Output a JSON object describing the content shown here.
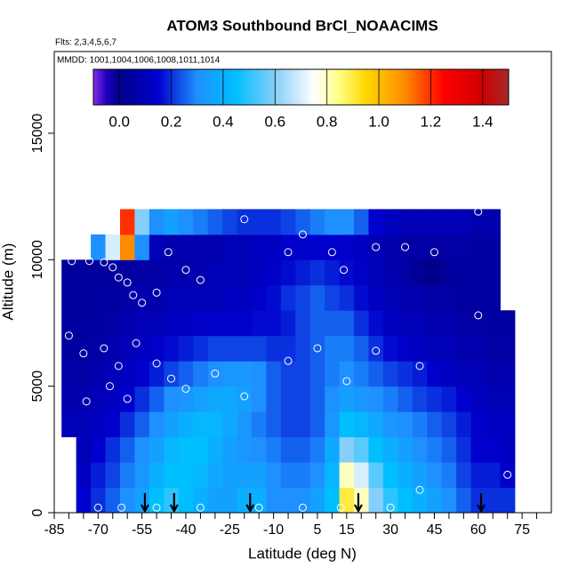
{
  "chart_data": {
    "type": "heatmap",
    "title": "ATOM3 Southbound BrCl_NOAACIMS",
    "subtitle": "Flts: 2,3,4,5,6,7",
    "annotation": "MMDD: 1001,1004,1006,1008,1011,1014",
    "x_label": "Latitude (deg N)",
    "y_label": "Altitude (m)",
    "xlim": [
      -85,
      85
    ],
    "ylim": [
      0,
      18230
    ],
    "xticks": [
      -85,
      -70,
      -55,
      -40,
      -25,
      -10,
      5,
      15,
      30,
      45,
      60,
      75
    ],
    "xminor": [
      -80,
      -75,
      -65,
      -60,
      -50,
      -45,
      -35,
      -30,
      -20,
      -15,
      -5,
      0,
      10,
      20,
      25,
      35,
      40,
      50,
      55,
      65,
      70,
      80
    ],
    "yticks": [
      0,
      5000,
      10000,
      15000
    ],
    "lat_bins": [
      -82.5,
      -77.5,
      -72.5,
      -67.5,
      -62.5,
      -57.5,
      -52.5,
      -47.5,
      -42.5,
      -37.5,
      -32.5,
      -27.5,
      -22.5,
      -17.5,
      -12.5,
      -7.5,
      -2.5,
      2.5,
      7.5,
      12.5,
      17.5,
      22.5,
      27.5,
      32.5,
      37.5,
      42.5,
      47.5,
      52.5,
      57.5,
      62.5,
      67.5,
      72.5
    ],
    "altitude_bins": [
      0,
      1000,
      2000,
      3000,
      4000,
      5000,
      6000,
      7000,
      8000,
      9000,
      10000,
      11000,
      12000
    ],
    "z": [
      [
        null,
        0.15,
        0.2,
        0.25,
        0.3,
        0.35,
        0.45,
        0.5,
        0.45,
        0.4,
        0.35,
        0.35,
        0.4,
        0.4,
        0.3,
        0.3,
        0.3,
        0.35,
        0.45,
        0.9,
        0.8,
        0.6,
        0.5,
        0.45,
        0.4,
        0.35,
        0.3,
        0.25,
        0.2,
        0.2,
        0.2
      ],
      [
        null,
        0.12,
        0.18,
        0.22,
        0.28,
        0.32,
        0.4,
        0.45,
        0.45,
        0.42,
        0.38,
        0.35,
        0.35,
        0.35,
        0.3,
        0.28,
        0.28,
        0.3,
        0.42,
        0.8,
        0.7,
        0.55,
        0.45,
        0.4,
        0.35,
        0.3,
        0.28,
        0.22,
        0.18,
        0.18,
        0.15
      ],
      [
        null,
        0.1,
        0.15,
        0.2,
        0.25,
        0.3,
        0.35,
        0.42,
        0.45,
        0.45,
        0.4,
        0.35,
        0.32,
        0.3,
        0.28,
        0.25,
        0.25,
        0.28,
        0.38,
        0.6,
        0.55,
        0.45,
        0.4,
        0.35,
        0.3,
        0.28,
        0.25,
        0.2,
        0.15,
        0.15,
        0.12
      ],
      [
        0.1,
        0.1,
        0.12,
        0.15,
        0.2,
        0.25,
        0.3,
        0.35,
        0.4,
        0.42,
        0.42,
        0.38,
        0.32,
        0.28,
        0.25,
        0.22,
        0.22,
        0.25,
        0.32,
        0.45,
        0.42,
        0.38,
        0.32,
        0.3,
        0.28,
        0.25,
        0.22,
        0.18,
        0.15,
        0.12,
        0.12
      ],
      [
        0.08,
        0.08,
        0.1,
        0.12,
        0.15,
        0.2,
        0.25,
        0.3,
        0.32,
        0.35,
        0.38,
        0.38,
        0.35,
        0.3,
        0.25,
        0.22,
        0.22,
        0.25,
        0.3,
        0.35,
        0.32,
        0.3,
        0.28,
        0.25,
        0.22,
        0.2,
        0.18,
        0.15,
        0.12,
        0.1,
        0.1
      ],
      [
        0.06,
        0.06,
        0.08,
        0.1,
        0.12,
        0.15,
        0.18,
        0.22,
        0.25,
        0.28,
        0.3,
        0.32,
        0.32,
        0.3,
        0.25,
        0.22,
        0.22,
        0.25,
        0.28,
        0.3,
        0.28,
        0.25,
        0.22,
        0.2,
        0.18,
        0.15,
        0.12,
        0.1,
        0.1,
        0.08,
        0.08
      ],
      [
        0.05,
        0.05,
        0.06,
        0.08,
        0.1,
        0.12,
        0.14,
        0.16,
        0.18,
        0.2,
        0.22,
        0.22,
        0.22,
        0.22,
        0.2,
        0.2,
        0.22,
        0.25,
        0.28,
        0.28,
        0.25,
        0.2,
        0.16,
        0.14,
        0.12,
        0.1,
        0.1,
        0.08,
        0.08,
        0.06,
        0.06
      ],
      [
        0.05,
        0.05,
        0.05,
        0.06,
        0.08,
        0.1,
        0.1,
        0.12,
        0.12,
        0.14,
        0.15,
        0.15,
        0.15,
        0.16,
        0.16,
        0.18,
        0.22,
        0.25,
        0.25,
        0.25,
        0.2,
        0.16,
        0.12,
        0.1,
        0.1,
        0.08,
        0.08,
        0.06,
        0.06,
        0.05,
        0.05
      ],
      [
        0.04,
        0.04,
        0.05,
        0.05,
        0.06,
        0.08,
        0.08,
        0.1,
        0.1,
        0.1,
        0.1,
        0.12,
        0.12,
        0.14,
        0.16,
        0.2,
        0.22,
        0.25,
        0.22,
        0.2,
        0.16,
        0.12,
        0.1,
        0.08,
        0.08,
        0.06,
        0.06,
        0.05,
        0.05,
        0.05,
        null
      ],
      [
        0.04,
        0.04,
        0.04,
        0.05,
        0.05,
        0.06,
        0.06,
        0.08,
        0.08,
        0.08,
        0.1,
        0.1,
        0.1,
        0.12,
        0.14,
        0.16,
        0.18,
        0.2,
        0.18,
        0.16,
        0.14,
        0.1,
        0.08,
        0.06,
        0.02,
        0.0,
        0.04,
        0.05,
        0.05,
        0.05,
        null
      ],
      [
        null,
        null,
        0.3,
        0.7,
        1.1,
        0.3,
        0.1,
        0.08,
        0.08,
        0.08,
        0.08,
        0.1,
        0.1,
        0.12,
        0.12,
        0.14,
        0.15,
        0.15,
        0.15,
        0.14,
        0.12,
        0.1,
        0.08,
        0.06,
        0.06,
        0.06,
        0.06,
        0.06,
        0.05,
        0.05,
        null
      ],
      [
        null,
        null,
        null,
        null,
        1.2,
        0.6,
        0.3,
        0.35,
        0.3,
        0.28,
        0.25,
        0.22,
        0.2,
        0.2,
        0.2,
        0.22,
        0.25,
        0.28,
        0.3,
        0.3,
        0.25,
        0.15,
        0.12,
        0.1,
        0.1,
        0.1,
        0.1,
        0.1,
        0.08,
        0.08,
        null
      ]
    ],
    "colorscale": [
      [
        -0.1,
        "#8a2be2"
      ],
      [
        -0.05,
        "#2000c0"
      ],
      [
        0,
        "#00008b"
      ],
      [
        0.15,
        "#0000cd"
      ],
      [
        0.3,
        "#1e90ff"
      ],
      [
        0.45,
        "#00bfff"
      ],
      [
        0.6,
        "#87cefa"
      ],
      [
        0.75,
        "#ffffff"
      ],
      [
        0.85,
        "#ffff80"
      ],
      [
        0.95,
        "#ffd700"
      ],
      [
        1.1,
        "#ff8c00"
      ],
      [
        1.25,
        "#ff0000"
      ],
      [
        1.4,
        "#cd0000"
      ],
      [
        1.5,
        "#a52a2a"
      ]
    ],
    "colorbar_lim": [
      -0.1,
      1.5
    ],
    "colorbar_ticks": [
      {
        "value": 0,
        "label": "0.0"
      },
      0.2,
      0.4,
      0.6,
      0.8,
      {
        "value": 1,
        "label": "1.0"
      },
      1.2,
      1.4
    ],
    "samples_lat": [
      -79,
      -73,
      -68,
      -65,
      -63,
      -60,
      -58,
      -55,
      -50,
      -46,
      -40,
      -35,
      -20,
      -5,
      0,
      10,
      14,
      25,
      35,
      45,
      60,
      -80,
      -75,
      -68,
      -63,
      -57,
      -50,
      -45,
      -40,
      -30,
      -20,
      -5,
      5,
      15,
      25,
      40,
      -74,
      -66,
      -60,
      -70,
      -62,
      -50,
      -35,
      -15,
      0,
      13,
      30,
      40,
      70,
      60
    ],
    "samples_alt": [
      9950,
      9950,
      9900,
      9700,
      9300,
      9100,
      8600,
      8300,
      8700,
      10300,
      9600,
      9200,
      11600,
      10300,
      11000,
      10300,
      9600,
      10500,
      10500,
      10300,
      7800,
      7000,
      6300,
      6500,
      5800,
      6700,
      5900,
      5300,
      4900,
      5500,
      4600,
      6000,
      6500,
      5200,
      6400,
      5800,
      4400,
      5000,
      4500,
      200,
      200,
      200,
      200,
      200,
      200,
      200,
      200,
      900,
      1500,
      11900
    ],
    "arrows_lat": [
      -54,
      -44,
      -18,
      19,
      61
    ]
  }
}
